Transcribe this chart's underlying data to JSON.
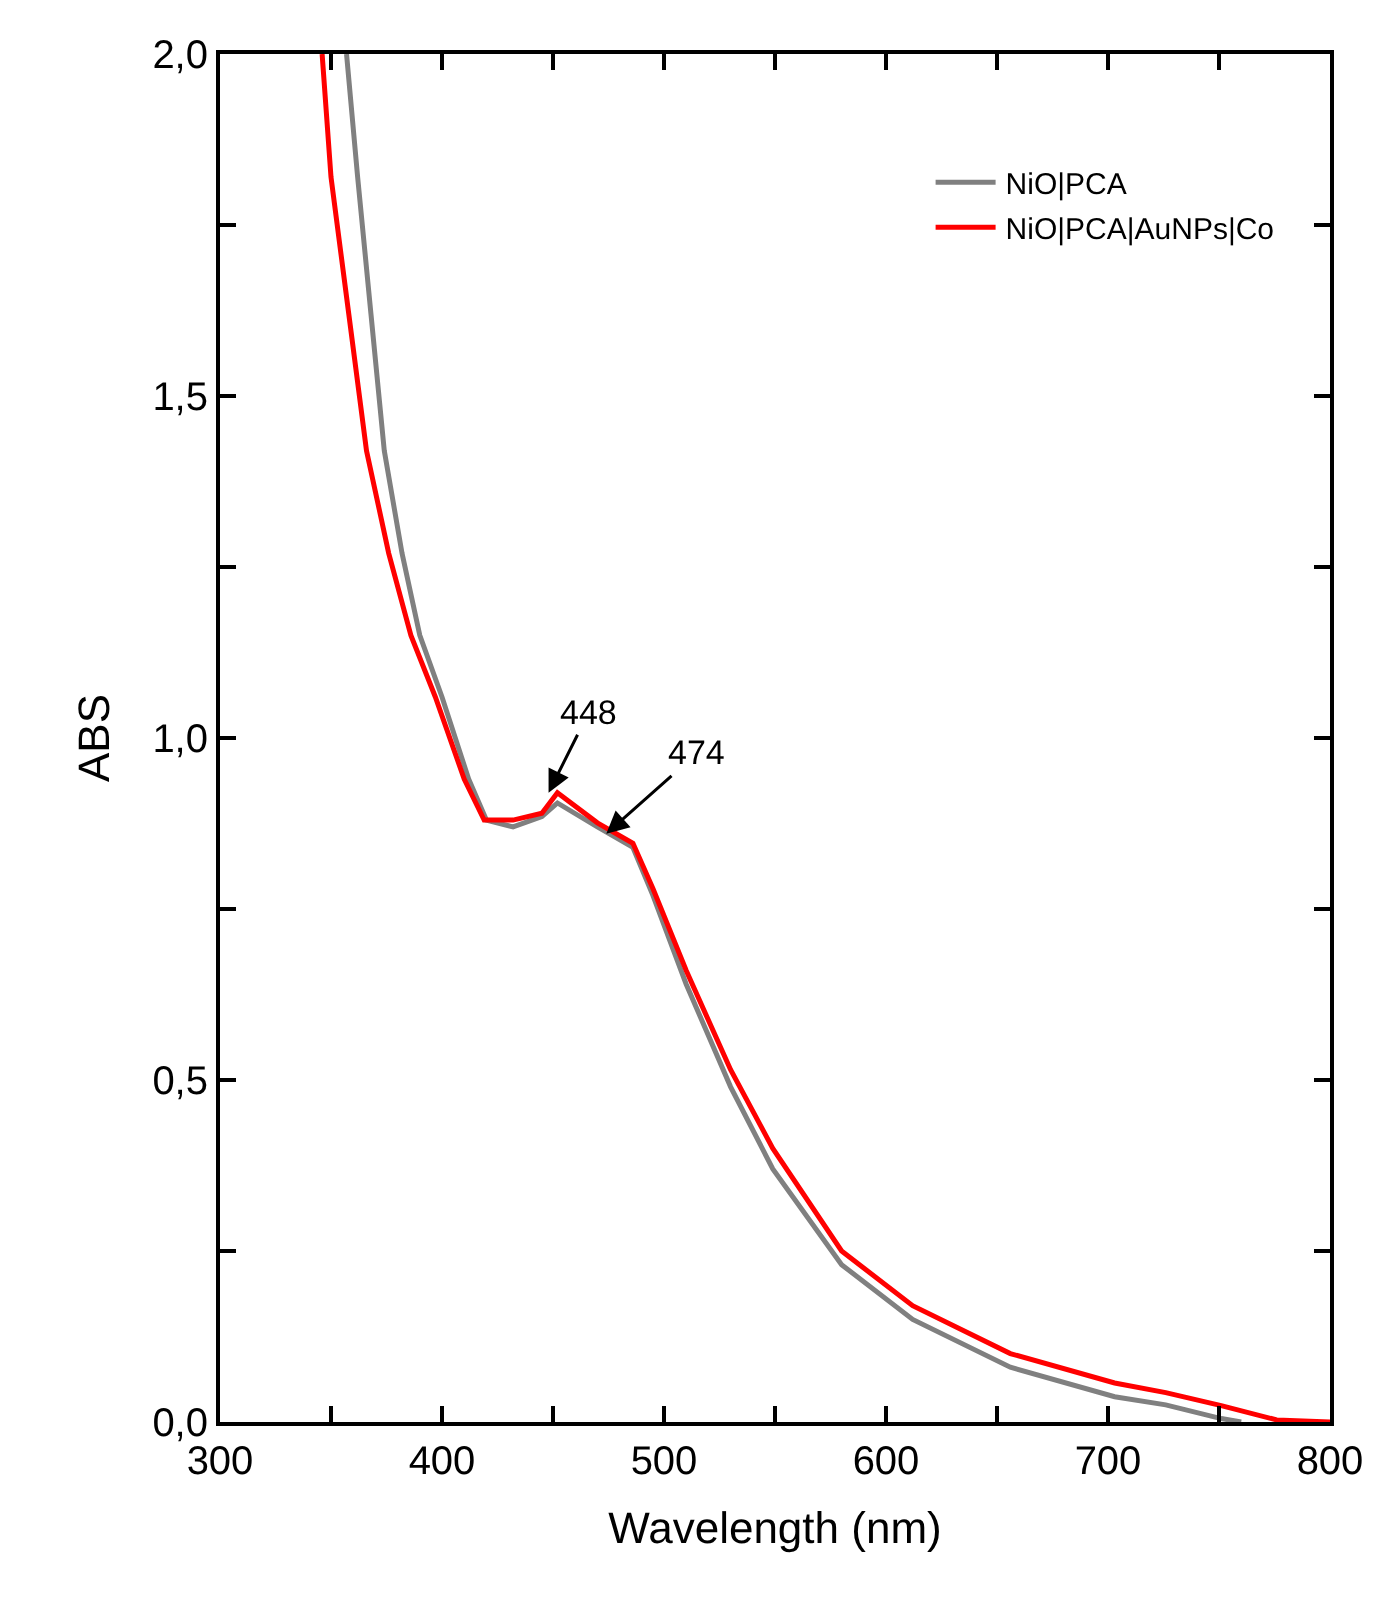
{
  "chart_data": {
    "type": "line",
    "xlabel": "Wavelength (nm)",
    "ylabel": "ABS",
    "xlim": [
      300,
      800
    ],
    "ylim": [
      0,
      2
    ],
    "xticks": [
      300,
      {
        "value": 350,
        "label": null
      },
      400,
      {
        "value": 450,
        "label": null
      },
      500,
      {
        "value": 550,
        "label": null
      },
      600,
      {
        "value": 650,
        "label": null
      },
      700,
      {
        "value": 750,
        "label": null
      },
      800
    ],
    "yticks": [
      {
        "value": 0,
        "label": "0,0"
      },
      {
        "value": 0.25,
        "label": null
      },
      {
        "value": 0.5,
        "label": "0,5"
      },
      {
        "value": 0.75,
        "label": null
      },
      {
        "value": 1,
        "label": "1,0"
      },
      {
        "value": 1.25,
        "label": null
      },
      {
        "value": 1.5,
        "label": "1,5"
      },
      {
        "value": 1.75,
        "label": null
      },
      {
        "value": 2,
        "label": "2,0"
      }
    ],
    "legend": "top right",
    "marker": "none",
    "line_style": "solid",
    "series": [
      {
        "name": "NiO|PCA",
        "color": "#808080",
        "x": [
          357,
          362,
          368,
          374,
          382,
          390,
          400,
          412,
          420,
          432,
          445,
          452,
          470,
          486,
          495,
          510,
          530,
          549,
          580,
          612,
          656,
          703,
          726,
          751,
          760
        ],
        "values": [
          2.0,
          1.82,
          1.62,
          1.42,
          1.27,
          1.15,
          1.06,
          0.94,
          0.88,
          0.87,
          0.885,
          0.905,
          0.87,
          0.84,
          0.77,
          0.64,
          0.49,
          0.37,
          0.23,
          0.15,
          0.08,
          0.037,
          0.025,
          0.005,
          0.0
        ]
      },
      {
        "name": "NiO|PCA|AuNPs|Co",
        "color": "#ff0000",
        "x": [
          346,
          350,
          358,
          366,
          376,
          386,
          397,
          410,
          419,
          432,
          445,
          452,
          470,
          486,
          495,
          510,
          530,
          549,
          580,
          612,
          656,
          703,
          726,
          751,
          776,
          800
        ],
        "values": [
          2.0,
          1.82,
          1.62,
          1.42,
          1.27,
          1.15,
          1.06,
          0.94,
          0.88,
          0.88,
          0.89,
          0.92,
          0.876,
          0.846,
          0.78,
          0.66,
          0.515,
          0.4,
          0.25,
          0.17,
          0.1,
          0.057,
          0.043,
          0.024,
          0.003,
          0.0
        ]
      }
    ],
    "annotations": [
      {
        "text": "448",
        "x": 448,
        "y": 0.92
      },
      {
        "text": "474",
        "x": 474,
        "y": 0.86
      }
    ]
  }
}
